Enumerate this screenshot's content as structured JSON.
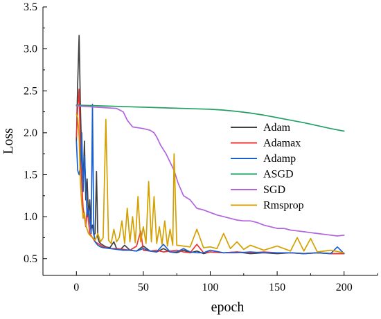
{
  "chart_data": {
    "type": "line",
    "xlabel": "epoch",
    "ylabel": "Loss",
    "xlim": [
      -25,
      225
    ],
    "ylim": [
      0.3,
      3.5
    ],
    "x_ticks": [
      0,
      50,
      100,
      150,
      200
    ],
    "y_ticks": [
      0.5,
      1.0,
      1.5,
      2.0,
      2.5,
      3.0,
      3.5
    ],
    "x_tick_labels": [
      "0",
      "50",
      "100",
      "150",
      "200"
    ],
    "y_tick_labels": [
      "0.5",
      "1.0",
      "1.5",
      "2.0",
      "2.5",
      "3.0",
      "3.5"
    ],
    "grid": false,
    "legend_position": "center-right",
    "series": [
      {
        "name": "Adam",
        "color": "#404040",
        "points": [
          [
            0,
            1.9
          ],
          [
            1,
            2.6
          ],
          [
            2,
            3.16
          ],
          [
            3,
            2.3
          ],
          [
            4,
            1.7
          ],
          [
            5,
            1.4
          ],
          [
            6,
            1.9
          ],
          [
            7,
            1.2
          ],
          [
            8,
            1.45
          ],
          [
            9,
            1.0
          ],
          [
            10,
            1.2
          ],
          [
            11,
            0.85
          ],
          [
            12,
            0.9
          ],
          [
            13,
            0.78
          ],
          [
            14,
            0.8
          ],
          [
            15,
            1.54
          ],
          [
            16,
            0.75
          ],
          [
            17,
            0.7
          ],
          [
            18,
            0.68
          ],
          [
            20,
            0.66
          ],
          [
            22,
            0.64
          ],
          [
            25,
            0.63
          ],
          [
            28,
            0.7
          ],
          [
            30,
            0.62
          ],
          [
            33,
            0.61
          ],
          [
            36,
            0.66
          ],
          [
            40,
            0.6
          ],
          [
            45,
            0.59
          ],
          [
            50,
            0.65
          ],
          [
            55,
            0.59
          ],
          [
            60,
            0.58
          ],
          [
            65,
            0.62
          ],
          [
            70,
            0.58
          ],
          [
            75,
            0.57
          ],
          [
            80,
            0.6
          ],
          [
            85,
            0.57
          ],
          [
            90,
            0.59
          ],
          [
            95,
            0.56
          ],
          [
            100,
            0.58
          ],
          [
            110,
            0.57
          ],
          [
            120,
            0.58
          ],
          [
            130,
            0.56
          ],
          [
            140,
            0.57
          ],
          [
            150,
            0.56
          ],
          [
            160,
            0.57
          ],
          [
            170,
            0.56
          ],
          [
            180,
            0.57
          ],
          [
            190,
            0.56
          ],
          [
            200,
            0.56
          ]
        ]
      },
      {
        "name": "Adamax",
        "color": "#ee3333",
        "points": [
          [
            0,
            1.95
          ],
          [
            1,
            2.3
          ],
          [
            2,
            2.52
          ],
          [
            3,
            1.8
          ],
          [
            4,
            1.4
          ],
          [
            5,
            1.1
          ],
          [
            6,
            1.0
          ],
          [
            7,
            0.88
          ],
          [
            8,
            1.1
          ],
          [
            9,
            0.95
          ],
          [
            10,
            0.8
          ],
          [
            12,
            0.75
          ],
          [
            14,
            0.7
          ],
          [
            16,
            0.68
          ],
          [
            18,
            0.66
          ],
          [
            20,
            0.64
          ],
          [
            25,
            0.62
          ],
          [
            30,
            0.62
          ],
          [
            35,
            0.61
          ],
          [
            40,
            0.6
          ],
          [
            45,
            0.65
          ],
          [
            48,
            0.83
          ],
          [
            50,
            0.6
          ],
          [
            55,
            0.59
          ],
          [
            60,
            0.6
          ],
          [
            65,
            0.58
          ],
          [
            70,
            0.59
          ],
          [
            75,
            0.6
          ],
          [
            80,
            0.58
          ],
          [
            85,
            0.57
          ],
          [
            90,
            0.67
          ],
          [
            95,
            0.57
          ],
          [
            100,
            0.58
          ],
          [
            110,
            0.57
          ],
          [
            120,
            0.58
          ],
          [
            130,
            0.57
          ],
          [
            140,
            0.58
          ],
          [
            150,
            0.57
          ],
          [
            160,
            0.57
          ],
          [
            170,
            0.56
          ],
          [
            180,
            0.57
          ],
          [
            190,
            0.56
          ],
          [
            200,
            0.56
          ]
        ]
      },
      {
        "name": "Adamp",
        "color": "#1a5fd0",
        "points": [
          [
            0,
            1.9
          ],
          [
            1,
            1.55
          ],
          [
            2,
            1.5
          ],
          [
            3,
            1.6
          ],
          [
            4,
            2.0
          ],
          [
            5,
            1.3
          ],
          [
            6,
            1.72
          ],
          [
            7,
            1.4
          ],
          [
            8,
            1.0
          ],
          [
            9,
            1.1
          ],
          [
            10,
            0.95
          ],
          [
            11,
            0.8
          ],
          [
            12,
            2.34
          ],
          [
            13,
            0.8
          ],
          [
            14,
            0.7
          ],
          [
            16,
            0.66
          ],
          [
            18,
            0.64
          ],
          [
            20,
            0.63
          ],
          [
            25,
            0.62
          ],
          [
            30,
            0.61
          ],
          [
            35,
            0.6
          ],
          [
            40,
            0.6
          ],
          [
            45,
            0.59
          ],
          [
            50,
            0.62
          ],
          [
            55,
            0.59
          ],
          [
            60,
            0.58
          ],
          [
            65,
            0.67
          ],
          [
            70,
            0.58
          ],
          [
            75,
            0.58
          ],
          [
            80,
            0.62
          ],
          [
            85,
            0.58
          ],
          [
            90,
            0.57
          ],
          [
            95,
            0.57
          ],
          [
            100,
            0.6
          ],
          [
            110,
            0.57
          ],
          [
            120,
            0.57
          ],
          [
            130,
            0.58
          ],
          [
            140,
            0.57
          ],
          [
            150,
            0.57
          ],
          [
            160,
            0.57
          ],
          [
            170,
            0.56
          ],
          [
            180,
            0.57
          ],
          [
            190,
            0.56
          ],
          [
            195,
            0.64
          ],
          [
            200,
            0.56
          ]
        ]
      },
      {
        "name": "ASGD",
        "color": "#22a062",
        "points": [
          [
            0,
            2.33
          ],
          [
            10,
            2.325
          ],
          [
            20,
            2.32
          ],
          [
            30,
            2.315
          ],
          [
            40,
            2.31
          ],
          [
            50,
            2.305
          ],
          [
            60,
            2.3
          ],
          [
            70,
            2.295
          ],
          [
            80,
            2.29
          ],
          [
            90,
            2.285
          ],
          [
            100,
            2.28
          ],
          [
            110,
            2.27
          ],
          [
            120,
            2.255
          ],
          [
            130,
            2.235
          ],
          [
            140,
            2.21
          ],
          [
            150,
            2.18
          ],
          [
            160,
            2.15
          ],
          [
            170,
            2.12
          ],
          [
            180,
            2.085
          ],
          [
            190,
            2.05
          ],
          [
            200,
            2.02
          ]
        ]
      },
      {
        "name": "SGD",
        "color": "#b163e0",
        "points": [
          [
            0,
            2.32
          ],
          [
            10,
            2.31
          ],
          [
            20,
            2.3
          ],
          [
            30,
            2.29
          ],
          [
            35,
            2.25
          ],
          [
            38,
            2.15
          ],
          [
            42,
            2.07
          ],
          [
            50,
            2.05
          ],
          [
            55,
            2.03
          ],
          [
            58,
            2.0
          ],
          [
            60,
            1.95
          ],
          [
            63,
            1.85
          ],
          [
            67,
            1.75
          ],
          [
            70,
            1.65
          ],
          [
            73,
            1.55
          ],
          [
            76,
            1.4
          ],
          [
            80,
            1.25
          ],
          [
            85,
            1.2
          ],
          [
            90,
            1.1
          ],
          [
            95,
            1.08
          ],
          [
            100,
            1.05
          ],
          [
            105,
            1.02
          ],
          [
            110,
            1.0
          ],
          [
            115,
            0.98
          ],
          [
            120,
            0.96
          ],
          [
            125,
            0.95
          ],
          [
            130,
            0.95
          ],
          [
            135,
            0.93
          ],
          [
            140,
            0.9
          ],
          [
            145,
            0.88
          ],
          [
            150,
            0.86
          ],
          [
            155,
            0.86
          ],
          [
            160,
            0.84
          ],
          [
            165,
            0.83
          ],
          [
            170,
            0.82
          ],
          [
            175,
            0.81
          ],
          [
            180,
            0.8
          ],
          [
            185,
            0.79
          ],
          [
            190,
            0.78
          ],
          [
            195,
            0.77
          ],
          [
            200,
            0.78
          ]
        ]
      },
      {
        "name": "Rmsprop",
        "color": "#d4a000",
        "points": [
          [
            0,
            2.22
          ],
          [
            1,
            2.18
          ],
          [
            2,
            1.95
          ],
          [
            3,
            1.4
          ],
          [
            4,
            1.15
          ],
          [
            5,
            0.98
          ],
          [
            6,
            1.05
          ],
          [
            7,
            0.9
          ],
          [
            8,
            0.85
          ],
          [
            9,
            0.8
          ],
          [
            10,
            0.78
          ],
          [
            12,
            0.75
          ],
          [
            14,
            0.72
          ],
          [
            16,
            0.8
          ],
          [
            18,
            0.7
          ],
          [
            20,
            0.75
          ],
          [
            22,
            2.16
          ],
          [
            24,
            0.72
          ],
          [
            26,
            0.68
          ],
          [
            28,
            0.85
          ],
          [
            30,
            0.7
          ],
          [
            32,
            0.75
          ],
          [
            34,
            0.95
          ],
          [
            36,
            0.68
          ],
          [
            38,
            1.1
          ],
          [
            40,
            0.7
          ],
          [
            42,
            1.0
          ],
          [
            44,
            0.69
          ],
          [
            46,
            1.24
          ],
          [
            48,
            0.7
          ],
          [
            50,
            0.88
          ],
          [
            52,
            0.68
          ],
          [
            54,
            1.42
          ],
          [
            56,
            0.7
          ],
          [
            58,
            1.24
          ],
          [
            60,
            0.68
          ],
          [
            62,
            0.88
          ],
          [
            64,
            0.67
          ],
          [
            66,
            0.95
          ],
          [
            68,
            0.65
          ],
          [
            70,
            0.85
          ],
          [
            72,
            0.66
          ],
          [
            73,
            1.75
          ],
          [
            75,
            0.66
          ],
          [
            80,
            0.65
          ],
          [
            85,
            0.64
          ],
          [
            90,
            0.85
          ],
          [
            95,
            0.63
          ],
          [
            100,
            0.64
          ],
          [
            105,
            0.62
          ],
          [
            110,
            0.8
          ],
          [
            115,
            0.62
          ],
          [
            120,
            0.7
          ],
          [
            125,
            0.61
          ],
          [
            130,
            0.66
          ],
          [
            140,
            0.6
          ],
          [
            150,
            0.65
          ],
          [
            160,
            0.59
          ],
          [
            165,
            0.75
          ],
          [
            170,
            0.59
          ],
          [
            175,
            0.74
          ],
          [
            180,
            0.58
          ],
          [
            190,
            0.6
          ],
          [
            200,
            0.57
          ]
        ]
      }
    ]
  }
}
